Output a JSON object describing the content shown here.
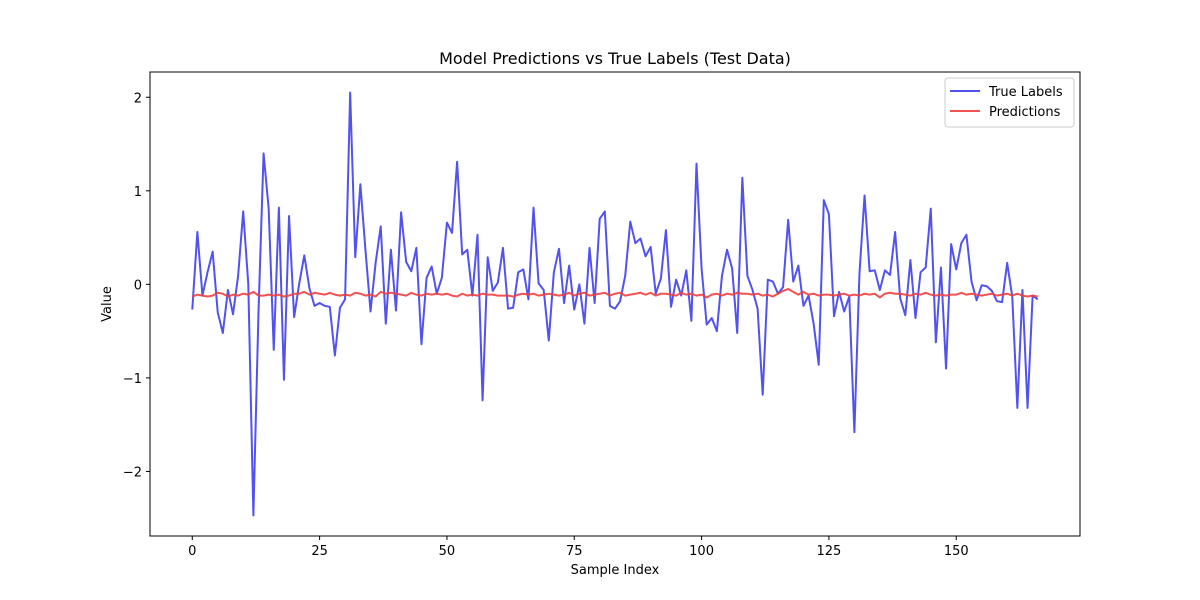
{
  "chart_data": {
    "type": "line",
    "title": "Model Predictions vs True Labels (Test Data)",
    "xlabel": "Sample Index",
    "ylabel": "Value",
    "xlim": [
      -8.3,
      174.3
    ],
    "ylim": [
      -2.69,
      2.27
    ],
    "xticks": [
      0,
      25,
      50,
      75,
      100,
      125,
      150
    ],
    "yticks": [
      -2,
      -1,
      0,
      1,
      2
    ],
    "xtick_labels": [
      "0",
      "25",
      "50",
      "75",
      "100",
      "125",
      "150"
    ],
    "ytick_labels": [
      "−2",
      "−1",
      "0",
      "1",
      "2"
    ],
    "grid": false,
    "legend_position": "top-right",
    "series": [
      {
        "name": "True Labels",
        "color": "#3f3ff0",
        "values": [
          -0.27,
          0.56,
          -0.12,
          0.13,
          0.35,
          -0.3,
          -0.52,
          -0.06,
          -0.32,
          0.09,
          0.78,
          0.0,
          -2.47,
          -0.3,
          1.4,
          0.81,
          -0.7,
          0.82,
          -1.02,
          0.73,
          -0.35,
          0.01,
          0.31,
          -0.04,
          -0.23,
          -0.2,
          -0.23,
          -0.24,
          -0.76,
          -0.25,
          -0.16,
          2.05,
          0.29,
          1.07,
          0.37,
          -0.29,
          0.23,
          0.62,
          -0.42,
          0.37,
          -0.28,
          0.77,
          0.24,
          0.14,
          0.39,
          -0.64,
          0.07,
          0.19,
          -0.1,
          0.07,
          0.66,
          0.55,
          1.31,
          0.32,
          0.37,
          -0.12,
          0.53,
          -1.24,
          0.29,
          -0.07,
          0.02,
          0.39,
          -0.26,
          -0.25,
          0.13,
          0.16,
          -0.16,
          0.82,
          0.01,
          -0.06,
          -0.6,
          0.13,
          0.38,
          -0.2,
          0.2,
          -0.27,
          0.0,
          -0.42,
          0.39,
          -0.2,
          0.7,
          0.78,
          -0.23,
          -0.26,
          -0.18,
          0.09,
          0.67,
          0.44,
          0.49,
          0.3,
          0.4,
          -0.1,
          0.06,
          0.58,
          -0.24,
          0.05,
          -0.12,
          0.15,
          -0.39,
          1.29,
          0.17,
          -0.43,
          -0.36,
          -0.5,
          0.09,
          0.37,
          0.17,
          -0.52,
          1.14,
          0.09,
          -0.06,
          -0.26,
          -1.18,
          0.05,
          0.03,
          -0.1,
          -0.03,
          0.69,
          0.03,
          0.2,
          -0.23,
          -0.12,
          -0.42,
          -0.86,
          0.9,
          0.75,
          -0.34,
          -0.08,
          -0.29,
          -0.13,
          -1.58,
          0.12,
          0.95,
          0.14,
          0.15,
          -0.06,
          0.15,
          0.1,
          0.56,
          -0.15,
          -0.33,
          0.26,
          -0.36,
          0.13,
          0.18,
          0.81,
          -0.62,
          0.18,
          -0.9,
          0.43,
          0.16,
          0.44,
          0.53,
          0.03,
          -0.17,
          -0.01,
          -0.02,
          -0.07,
          -0.18,
          -0.19,
          0.23,
          -0.13,
          -1.32,
          -0.06,
          -1.32,
          -0.12,
          -0.16
        ]
      },
      {
        "name": "Predictions",
        "color": "#f03f3f",
        "values": [
          -0.13,
          -0.11,
          -0.12,
          -0.13,
          -0.12,
          -0.09,
          -0.1,
          -0.13,
          -0.11,
          -0.12,
          -0.1,
          -0.11,
          -0.08,
          -0.12,
          -0.12,
          -0.11,
          -0.12,
          -0.11,
          -0.13,
          -0.12,
          -0.1,
          -0.1,
          -0.08,
          -0.11,
          -0.09,
          -0.1,
          -0.11,
          -0.09,
          -0.11,
          -0.12,
          -0.11,
          -0.12,
          -0.09,
          -0.1,
          -0.12,
          -0.11,
          -0.13,
          -0.08,
          -0.1,
          -0.09,
          -0.1,
          -0.11,
          -0.12,
          -0.09,
          -0.11,
          -0.12,
          -0.1,
          -0.11,
          -0.1,
          -0.11,
          -0.1,
          -0.12,
          -0.13,
          -0.1,
          -0.12,
          -0.11,
          -0.12,
          -0.1,
          -0.11,
          -0.11,
          -0.12,
          -0.12,
          -0.12,
          -0.13,
          -0.11,
          -0.1,
          -0.11,
          -0.1,
          -0.12,
          -0.11,
          -0.1,
          -0.11,
          -0.12,
          -0.11,
          -0.09,
          -0.12,
          -0.1,
          -0.09,
          -0.12,
          -0.11,
          -0.1,
          -0.09,
          -0.12,
          -0.1,
          -0.09,
          -0.12,
          -0.11,
          -0.1,
          -0.09,
          -0.11,
          -0.09,
          -0.12,
          -0.1,
          -0.1,
          -0.11,
          -0.12,
          -0.09,
          -0.11,
          -0.1,
          -0.12,
          -0.11,
          -0.14,
          -0.11,
          -0.1,
          -0.12,
          -0.1,
          -0.11,
          -0.09,
          -0.1,
          -0.1,
          -0.11,
          -0.1,
          -0.12,
          -0.11,
          -0.13,
          -0.1,
          -0.07,
          -0.05,
          -0.08,
          -0.11,
          -0.08,
          -0.11,
          -0.1,
          -0.12,
          -0.11,
          -0.11,
          -0.12,
          -0.11,
          -0.1,
          -0.12,
          -0.11,
          -0.12,
          -0.1,
          -0.11,
          -0.1,
          -0.14,
          -0.1,
          -0.09,
          -0.1,
          -0.1,
          -0.11,
          -0.12,
          -0.1,
          -0.11,
          -0.09,
          -0.11,
          -0.12,
          -0.11,
          -0.12,
          -0.11,
          -0.11,
          -0.09,
          -0.11,
          -0.1,
          -0.11,
          -0.12,
          -0.11,
          -0.1,
          -0.12,
          -0.11,
          -0.1,
          -0.12,
          -0.1,
          -0.12,
          -0.13,
          -0.12,
          -0.13
        ]
      }
    ]
  }
}
